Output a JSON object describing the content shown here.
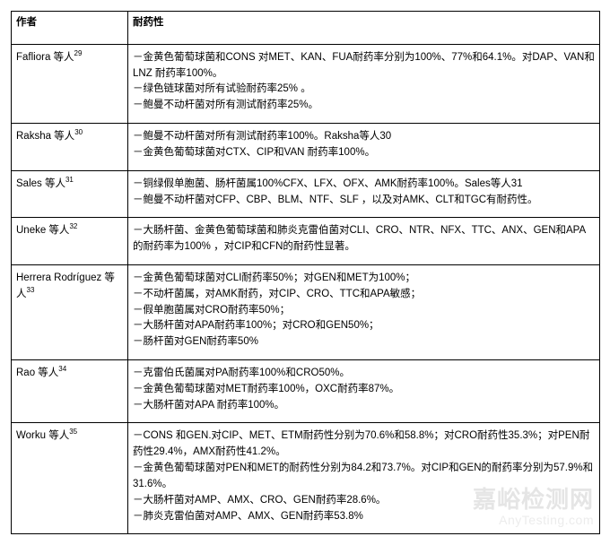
{
  "header": {
    "author_col": "作者",
    "content_col": "耐药性"
  },
  "rows": [
    {
      "author_html": "Fafliora 等人<sup>29</sup>",
      "lines": [
        "－金黄色葡萄球菌和CONS 对MET、KAN、FUA耐药率分别为100%、77%和64.1%。对DAP、VAN和LNZ 耐药率100%。",
        "－绿色链球菌对所有试验耐药率25% 。",
        "－鲍曼不动杆菌对所有测试耐药率25%。"
      ]
    },
    {
      "author_html": "Raksha 等人<sup>30</sup>",
      "lines": [
        "－鲍曼不动杆菌对所有测试耐药率100%。Raksha等人30",
        "－金黄色葡萄球菌对CTX、CIP和VAN 耐药率100%。"
      ]
    },
    {
      "author_html": "Sales 等人<sup>31</sup>",
      "lines": [
        "－铜绿假单胞菌、肠杆菌属100%CFX、LFX、OFX、AMK耐药率100%。Sales等人31",
        "－鲍曼不动杆菌对CFP、CBP、BLM、NTF、SLF ，以及对AMK、CLT和TGC有耐药性。"
      ]
    },
    {
      "author_html": "Uneke 等人<sup>32</sup>",
      "lines": [
        "－大肠杆菌、金黄色葡萄球菌和肺炎克雷伯菌对CLI、CRO、NTR、NFX、TTC、ANX、GEN和APA的耐药率为100% ，对CIP和CFN的耐药性显著。"
      ]
    },
    {
      "author_html": "Herrera Rodríguez 等人<sup>33</sup>",
      "lines": [
        "－金黄色葡萄球菌对CLI耐药率50%；对GEN和MET为100%；",
        "－不动杆菌属，对AMK耐药，对CIP、CRO、TTC和APA敏感；",
        "－假单胞菌属对CRO耐药率50%；",
        "－大肠杆菌对APA耐药率100%；对CRO和GEN50%；",
        "－肠杆菌对GEN耐药率50%"
      ]
    },
    {
      "author_html": "Rao 等人<sup>34</sup>",
      "lines": [
        "－克雷伯氏菌属对PA耐药率100%和CRO50%。",
        "－金黄色葡萄球菌对MET耐药率100%，OXC耐药率87%。",
        "－大肠杆菌对APA 耐药率100%。"
      ]
    },
    {
      "author_html": "Worku 等人<sup>35</sup>",
      "lines": [
        "－CONS 和GEN.对CIP、MET、ETM耐药性分别为70.6%和58.8%；对CRO耐药性35.3%；对PEN耐药性29.4%，AMX耐药性41.2%。",
        "－金黄色葡萄球菌对PEN和MET的耐药性分别为84.2和73.7%。对CIP和GEN的耐药率分别为57.9%和31.6%。",
        "－大肠杆菌对AMP、AMX、CRO、GEN耐药率28.6%。",
        "－肺炎克雷伯菌对AMP、AMX、GEN耐药率53.8%"
      ]
    }
  ],
  "watermark": {
    "line1": "嘉峪检测网",
    "line2": "AnyTesting.com"
  }
}
